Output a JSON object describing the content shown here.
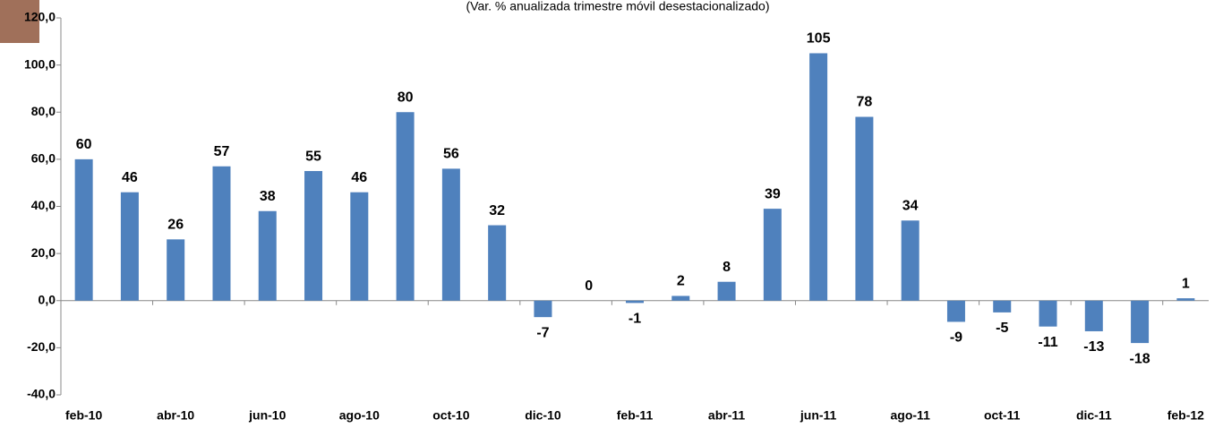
{
  "chart_data": {
    "type": "bar",
    "subtitle": "(Var. % anualizada trimestre móvil desestacionalizado)",
    "categories": [
      "feb-10",
      null,
      "abr-10",
      null,
      "jun-10",
      null,
      "ago-10",
      null,
      "oct-10",
      null,
      "dic-10",
      null,
      "feb-11",
      null,
      "abr-11",
      null,
      "jun-11",
      null,
      "ago-11",
      null,
      "oct-11",
      null,
      "dic-11",
      null,
      "feb-12"
    ],
    "values": [
      60,
      46,
      26,
      57,
      38,
      55,
      46,
      80,
      56,
      32,
      -7,
      0,
      -1,
      2,
      8,
      39,
      105,
      78,
      34,
      -9,
      -5,
      -11,
      -13,
      -18,
      1
    ],
    "color": "#4f81bd",
    "ylim": [
      -40,
      120
    ],
    "yticks": [
      {
        "value": -40,
        "label": "-40,0"
      },
      {
        "value": -20,
        "label": "-20,0"
      },
      {
        "value": 0,
        "label": "0,0"
      },
      {
        "value": 20,
        "label": "20,0"
      },
      {
        "value": 40,
        "label": "40,0"
      },
      {
        "value": 60,
        "label": "60,0"
      },
      {
        "value": 80,
        "label": "80,0"
      },
      {
        "value": 100,
        "label": "100,0"
      },
      {
        "value": 120,
        "label": "120,0"
      }
    ],
    "grid": false
  }
}
